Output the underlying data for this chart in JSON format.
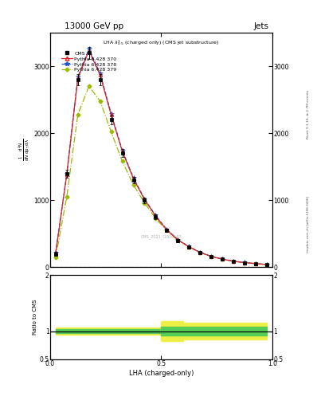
{
  "title_top": "13000 GeV pp",
  "title_right": "Jets",
  "annotation": "LHA $\\lambda^{1}_{0.5}$ (charged only) (CMS jet substructure)",
  "watermark": "CMS_2021_I1920187",
  "rivet_label": "Rivet 3.1.10, ≥ 2.7M events",
  "arxiv_label": "mcplots.cern.ch [arXiv:1306.3436]",
  "ylabel_main_parts": [
    "mathrm d^{2}N",
    "mathrm d p_{T} mathrm d lambda"
  ],
  "ylabel_ratio": "Ratio to CMS",
  "xlabel": "LHA (charged-only)",
  "xlim": [
    0,
    1
  ],
  "ylim_main": [
    0,
    3500
  ],
  "ylim_ratio": [
    0.5,
    2
  ],
  "yticks_main": [
    0,
    1000,
    2000,
    3000
  ],
  "yticks_ratio": [
    0.5,
    1,
    2
  ],
  "x_data": [
    0.025,
    0.075,
    0.125,
    0.175,
    0.225,
    0.275,
    0.325,
    0.375,
    0.425,
    0.475,
    0.525,
    0.575,
    0.625,
    0.675,
    0.725,
    0.775,
    0.825,
    0.875,
    0.925,
    0.975
  ],
  "cms_data": [
    200,
    1400,
    2800,
    3200,
    2800,
    2200,
    1700,
    1300,
    1000,
    750,
    550,
    400,
    300,
    220,
    160,
    120,
    90,
    70,
    55,
    40
  ],
  "cms_errors": [
    30,
    60,
    80,
    90,
    80,
    70,
    60,
    50,
    40,
    35,
    28,
    22,
    18,
    14,
    11,
    9,
    7,
    6,
    5,
    4
  ],
  "pythia370_data": [
    210,
    1380,
    2820,
    3230,
    2870,
    2270,
    1730,
    1320,
    1010,
    762,
    558,
    408,
    305,
    222,
    162,
    122,
    90,
    70,
    55,
    41
  ],
  "pythia378_data": [
    215,
    1390,
    2840,
    3260,
    2890,
    2290,
    1745,
    1335,
    1020,
    772,
    565,
    412,
    308,
    224,
    164,
    123,
    91,
    71,
    56,
    42
  ],
  "pythia379_data": [
    145,
    1050,
    2280,
    2700,
    2480,
    2020,
    1580,
    1230,
    960,
    730,
    548,
    405,
    305,
    222,
    162,
    122,
    90,
    70,
    55,
    41
  ],
  "green_band_low": [
    0.97,
    0.97,
    0.97,
    0.97,
    0.97,
    0.97,
    0.97,
    0.97,
    0.97,
    0.97,
    0.92,
    0.92,
    0.92,
    0.92,
    0.92,
    0.92,
    0.92,
    0.92,
    0.92,
    0.92
  ],
  "green_band_high": [
    1.03,
    1.03,
    1.03,
    1.03,
    1.03,
    1.03,
    1.03,
    1.03,
    1.03,
    1.03,
    1.08,
    1.08,
    1.08,
    1.08,
    1.08,
    1.08,
    1.08,
    1.08,
    1.08,
    1.08
  ],
  "yellow_band_low": [
    0.93,
    0.93,
    0.93,
    0.93,
    0.93,
    0.93,
    0.93,
    0.93,
    0.93,
    0.93,
    0.82,
    0.82,
    0.85,
    0.85,
    0.85,
    0.85,
    0.85,
    0.85,
    0.85,
    0.85
  ],
  "yellow_band_high": [
    1.07,
    1.07,
    1.07,
    1.07,
    1.07,
    1.07,
    1.07,
    1.07,
    1.07,
    1.07,
    1.18,
    1.18,
    1.15,
    1.15,
    1.15,
    1.15,
    1.15,
    1.15,
    1.15,
    1.15
  ],
  "color_cms": "black",
  "color_370": "#dd2222",
  "color_378": "#2255cc",
  "color_379": "#99bb00",
  "color_green_band": "#55cc55",
  "color_yellow_band": "#eeee44",
  "label_cms": "CMS",
  "label_370": "Pythia 6.428 370",
  "label_378": "Pythia 6.428 378",
  "label_379": "Pythia 6.428 379"
}
